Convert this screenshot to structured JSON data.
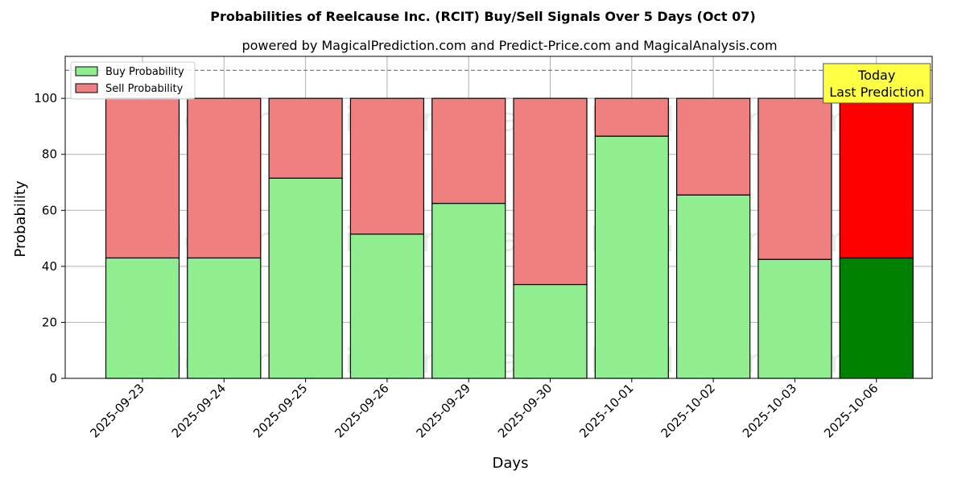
{
  "chart_data": {
    "type": "bar",
    "stacked": true,
    "title": "Probabilities of Reelcause Inc. (RCIT) Buy/Sell Signals Over 5 Days (Oct 07)",
    "subtitle": "powered by MagicalPrediction.com and Predict-Price.com and MagicalAnalysis.com",
    "xlabel": "Days",
    "ylabel": "Probability",
    "ylim": [
      0,
      115
    ],
    "yticks": [
      0,
      20,
      40,
      60,
      80,
      100
    ],
    "reference_line": 110,
    "grid": true,
    "legend_position": "top-left",
    "categories": [
      "2025-09-23",
      "2025-09-24",
      "2025-09-25",
      "2025-09-26",
      "2025-09-29",
      "2025-09-30",
      "2025-10-01",
      "2025-10-02",
      "2025-10-03",
      "2025-10-06"
    ],
    "series": [
      {
        "name": "Buy Probability",
        "values": [
          43,
          43,
          71.5,
          51.5,
          62.5,
          33.5,
          86.5,
          65.5,
          42.5,
          43
        ],
        "color": "#90ee90",
        "highlight_color": "#008000"
      },
      {
        "name": "Sell Probability",
        "values": [
          57,
          57,
          28.5,
          48.5,
          37.5,
          66.5,
          13.5,
          34.5,
          57.5,
          57
        ],
        "color": "#f08080",
        "highlight_color": "#ff0000"
      }
    ],
    "highlight_index": 9,
    "annotation": {
      "lines": [
        "Today",
        "Last Prediction"
      ],
      "background": "#ffff44"
    },
    "watermarks": [
      "MagicalAnalysis.com",
      "MagicalPrediction.com"
    ]
  }
}
